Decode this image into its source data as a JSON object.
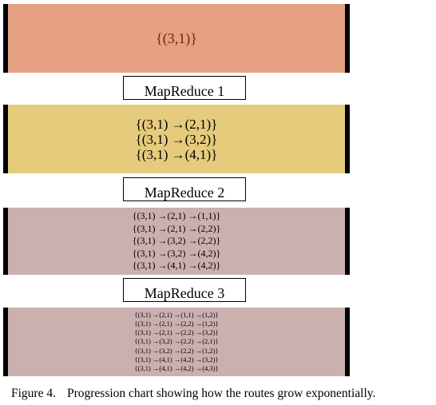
{
  "stages": [
    {
      "routes": [
        "{(3,1)}"
      ]
    },
    {
      "routes": [
        "{(3,1) →(2,1)}",
        "{(3,1) →(3,2)}",
        "{(3,1) →(4,1)}"
      ]
    },
    {
      "routes": [
        "{(3,1) →(2,1) →(1,1)}",
        "{(3,1) →(2,1) →(2,2)}",
        "{(3,1) →(3,2) →(2,2)}",
        "{(3,1) →(3,2) →(4,2)}",
        "{(3,1) →(4,1) →(4,2)}"
      ]
    },
    {
      "routes": [
        "{(3,1) →(2,1) →(1,1) →(1,2)}",
        "{(3,1) →(2,1) →(2,2) →(1,2)}",
        "{(3,1) →(2,1) →(2,2) →(3,2)}",
        "{(3,1) →(3,2) →(2,2) →(2,1)}",
        "{(3,1) →(3,2) →(2,2) →(1,2)}",
        "{(3,1) →(4,1) →(4,2) →(3,2)}",
        "{(3,1) →(4,1) →(4,2) →(4,3)}"
      ]
    }
  ],
  "steps": [
    "MapReduce 1",
    "MapReduce 2",
    "MapReduce 3"
  ],
  "caption": {
    "number": "Figure 4.",
    "text": "Progression chart showing how the routes grow exponentially."
  },
  "colors": {
    "stage_0": "#e6a182",
    "stage_1": "#e6cb7d",
    "stage_2": "#cbb0b0",
    "stage_3": "#cbb0b0"
  }
}
